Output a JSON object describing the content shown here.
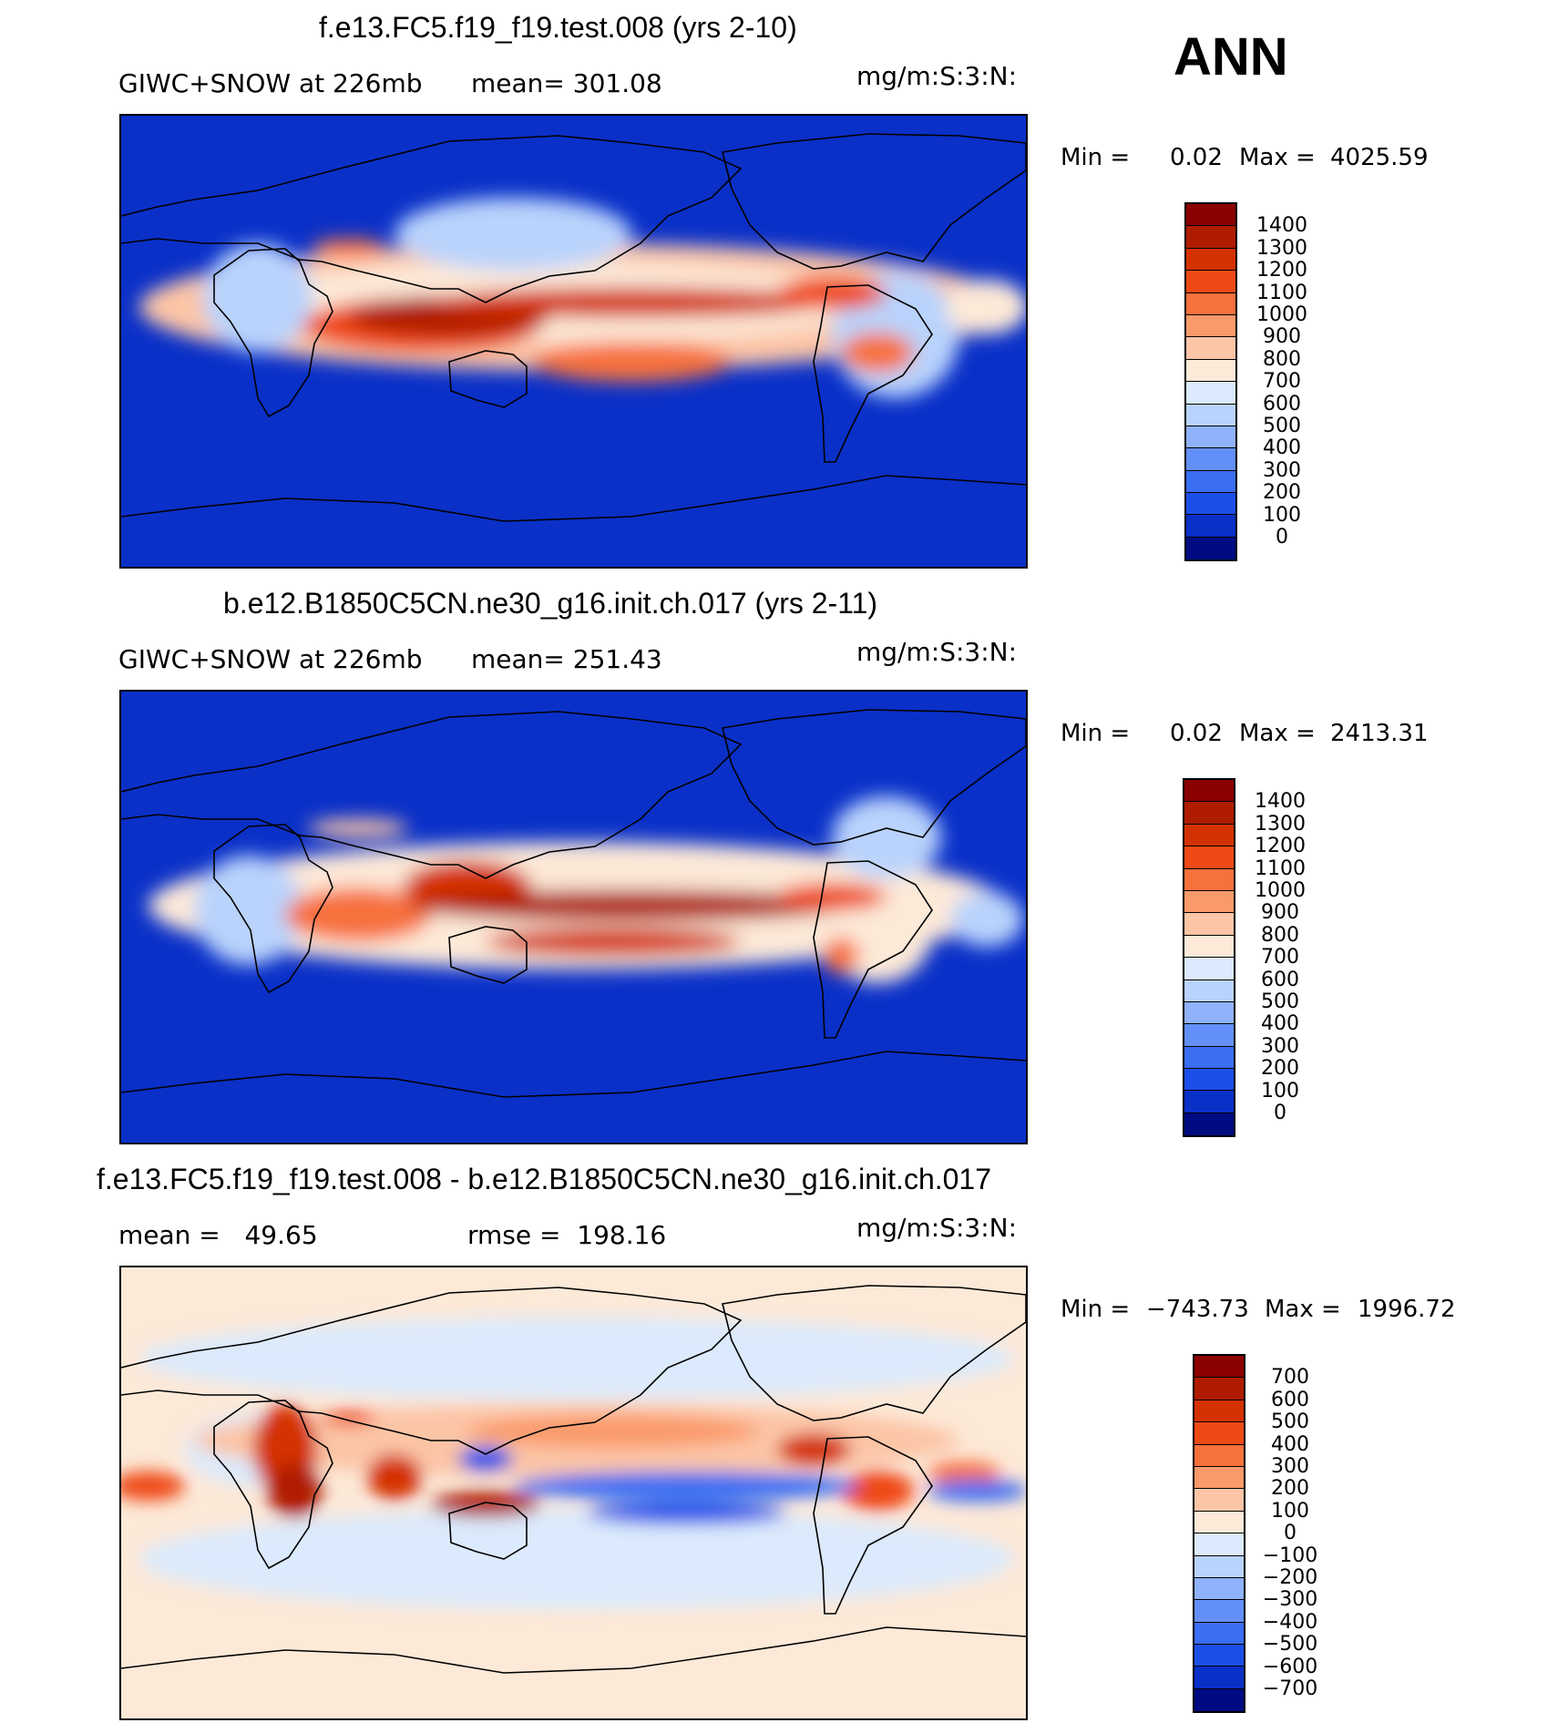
{
  "season": "ANN",
  "panels": [
    {
      "title": "f.e13.FC5.f19_f19.test.008 (yrs 2-10)",
      "sub_left": "GIWC+SNOW at 226mb",
      "sub_mid": "mean= 301.08",
      "units": "mg/m:S:3:N:",
      "min_label": "Min =",
      "min_value": "0.02",
      "max_label": "Max =",
      "max_value": "4025.59",
      "colorbar_levels": [
        "1400",
        "1300",
        "1200",
        "1100",
        "1000",
        "900",
        "800",
        "700",
        "600",
        "500",
        "400",
        "300",
        "200",
        "100",
        "0"
      ],
      "colors": [
        "#8b0000",
        "#b01c00",
        "#d43100",
        "#ef4a15",
        "#f7713d",
        "#fa9a6b",
        "#fcc5a6",
        "#fde9d8",
        "#dbeafc",
        "#b9d3fc",
        "#8fb2fb",
        "#6390f8",
        "#3a6ef3",
        "#1c4fea",
        "#0a30c8",
        "#000b82"
      ],
      "background_color": "#0a30c8"
    },
    {
      "title": "b.e12.B1850C5CN.ne30_g16.init.ch.017 (yrs 2-11)",
      "sub_left": "GIWC+SNOW at 226mb",
      "sub_mid": "mean= 251.43",
      "units": "mg/m:S:3:N:",
      "min_label": "Min =",
      "min_value": "0.02",
      "max_label": "Max =",
      "max_value": "2413.31",
      "colorbar_levels": [
        "1400",
        "1300",
        "1200",
        "1100",
        "1000",
        "900",
        "800",
        "700",
        "600",
        "500",
        "400",
        "300",
        "200",
        "100",
        "0"
      ],
      "colors": [
        "#8b0000",
        "#b01c00",
        "#d43100",
        "#ef4a15",
        "#f7713d",
        "#fa9a6b",
        "#fcc5a6",
        "#fde9d8",
        "#dbeafc",
        "#b9d3fc",
        "#8fb2fb",
        "#6390f8",
        "#3a6ef3",
        "#1c4fea",
        "#0a30c8",
        "#000b82"
      ],
      "background_color": "#0a30c8"
    },
    {
      "title": "f.e13.FC5.f19_f19.test.008 - b.e12.B1850C5CN.ne30_g16.init.ch.017",
      "sub_left": "mean =   49.65",
      "sub_mid": "rmse =  198.16",
      "units": "mg/m:S:3:N:",
      "min_label": "Min =",
      "min_value": "−743.73",
      "max_label": "Max =",
      "max_value": "1996.72",
      "colorbar_levels": [
        "700",
        "600",
        "500",
        "400",
        "300",
        "200",
        "100",
        "0",
        "−100",
        "−200",
        "−300",
        "−400",
        "−500",
        "−600",
        "−700"
      ],
      "colors": [
        "#8b0000",
        "#b01c00",
        "#d43100",
        "#ef4a15",
        "#f7713d",
        "#fa9a6b",
        "#fcc5a6",
        "#fde9d8",
        "#dbeafc",
        "#b9d3fc",
        "#8fb2fb",
        "#6390f8",
        "#3a6ef3",
        "#1c4fea",
        "#0a30c8",
        "#000b82"
      ],
      "background_color": "#fde9d8"
    }
  ]
}
